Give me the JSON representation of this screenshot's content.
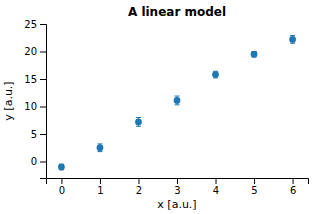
{
  "chart_data": {
    "type": "scatter",
    "title": "A linear model",
    "xlabel": "x [a.u.]",
    "ylabel": "y [a.u.]",
    "x": [
      0,
      1,
      2,
      3,
      4,
      5,
      6
    ],
    "values": [
      -1.0,
      2.5,
      7.2,
      11.1,
      15.8,
      19.5,
      22.2
    ],
    "yerr": [
      0.5,
      0.7,
      0.8,
      0.8,
      0.6,
      0.5,
      0.7
    ],
    "color": "#1f77b4",
    "marker": "circle",
    "xlim": [
      -0.4,
      6.4
    ],
    "xticks": [
      0,
      1,
      2,
      3,
      4,
      5,
      6
    ],
    "ylim": [
      -3,
      25
    ],
    "yticks": [
      0,
      5,
      10,
      15,
      20,
      25
    ],
    "grid": false
  }
}
